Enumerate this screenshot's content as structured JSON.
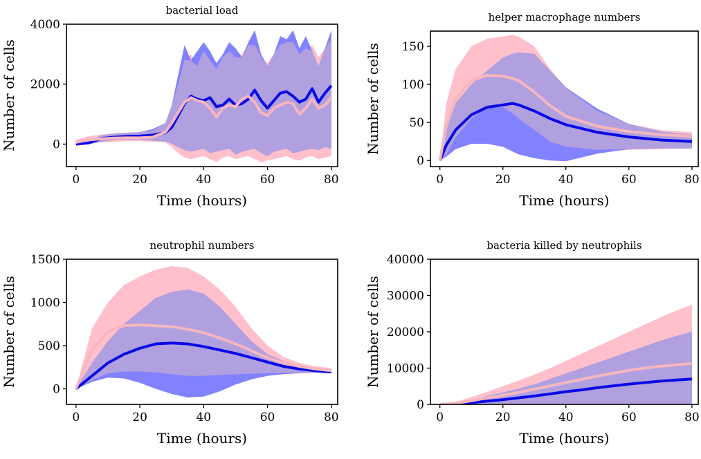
{
  "figure": {
    "background": "#ffffff"
  },
  "colors": {
    "blue_line": "#0a0ae6",
    "blue_band": "#6666ff",
    "pink_line": "#f5b6bf",
    "pink_band": "#ffc0cb",
    "overlap": "#b0a0df"
  },
  "chart_data": [
    {
      "type": "line",
      "title": "bacterial load",
      "xlabel": "Time (hours)",
      "ylabel": "Number of cells",
      "xlim": [
        -3,
        82
      ],
      "ylim": [
        -750,
        4000
      ],
      "xticks": [
        0,
        20,
        40,
        60,
        80
      ],
      "yticks": [
        0,
        2000,
        4000
      ],
      "x": [
        0,
        4,
        8,
        12,
        16,
        20,
        24,
        28,
        30,
        32,
        34,
        36,
        38,
        40,
        42,
        44,
        46,
        48,
        50,
        52,
        54,
        56,
        58,
        60,
        62,
        64,
        66,
        68,
        70,
        72,
        74,
        76,
        78,
        80
      ],
      "series": [
        {
          "name": "blue",
          "mean": [
            0,
            40,
            190,
            230,
            260,
            270,
            300,
            380,
            560,
            950,
            1350,
            1600,
            1500,
            1450,
            1550,
            1250,
            1300,
            1500,
            1300,
            1350,
            1500,
            1800,
            1450,
            1200,
            1450,
            1700,
            1750,
            1600,
            1400,
            1500,
            1850,
            1400,
            1700,
            1950
          ],
          "upper": [
            0,
            80,
            300,
            350,
            380,
            400,
            500,
            700,
            1300,
            2300,
            3300,
            2800,
            3100,
            3400,
            3100,
            2700,
            3000,
            3400,
            3200,
            2900,
            3400,
            3800,
            3000,
            2600,
            3000,
            3600,
            3500,
            3800,
            3200,
            3600,
            3100,
            2600,
            3200,
            3800
          ],
          "lower": [
            0,
            0,
            80,
            130,
            150,
            150,
            120,
            80,
            20,
            -100,
            -200,
            -250,
            -200,
            -150,
            -300,
            -250,
            -200,
            -150,
            -350,
            -250,
            -200,
            -150,
            -300,
            -400,
            -250,
            -200,
            -150,
            -300,
            -250,
            -200,
            -150,
            -200,
            -100,
            -150
          ]
        },
        {
          "name": "pink",
          "mean": [
            60,
            140,
            180,
            200,
            210,
            210,
            230,
            400,
            700,
            1050,
            1400,
            1550,
            1450,
            1400,
            1200,
            900,
            1200,
            1300,
            1250,
            1500,
            1600,
            1400,
            1050,
            950,
            1200,
            1300,
            1400,
            1350,
            1000,
            1200,
            1500,
            1200,
            1300,
            1550
          ],
          "upper": [
            150,
            260,
            320,
            350,
            370,
            400,
            450,
            700,
            1300,
            2000,
            2800,
            3000,
            2600,
            3100,
            2800,
            2500,
            2900,
            3100,
            2900,
            3000,
            3300,
            3300,
            2900,
            2700,
            3000,
            3300,
            3400,
            3400,
            3000,
            3200,
            3300,
            2900,
            3200,
            3500
          ],
          "lower": [
            -50,
            0,
            60,
            80,
            100,
            100,
            80,
            60,
            -100,
            -300,
            -450,
            -500,
            -450,
            -400,
            -500,
            -600,
            -450,
            -400,
            -500,
            -450,
            -400,
            -500,
            -600,
            -550,
            -500,
            -450,
            -400,
            -500,
            -550,
            -450,
            -400,
            -500,
            -450,
            -400
          ]
        }
      ]
    },
    {
      "type": "line",
      "title": "helper macrophage numbers",
      "xlabel": "Time (hours)",
      "ylabel": "Number of cells",
      "xlim": [
        -3,
        82
      ],
      "ylim": [
        -8,
        170
      ],
      "xticks": [
        0,
        20,
        40,
        60,
        80
      ],
      "yticks": [
        0,
        50,
        100,
        150
      ],
      "x": [
        0,
        2,
        5,
        10,
        15,
        20,
        23,
        25,
        30,
        35,
        40,
        50,
        60,
        70,
        80
      ],
      "series": [
        {
          "name": "blue",
          "mean": [
            0,
            20,
            40,
            60,
            70,
            73,
            75,
            73,
            65,
            55,
            47,
            37,
            31,
            27,
            25
          ],
          "upper": [
            0,
            40,
            75,
            100,
            118,
            135,
            140,
            142,
            140,
            118,
            96,
            68,
            48,
            38,
            34
          ],
          "lower": [
            0,
            5,
            15,
            22,
            22,
            18,
            12,
            8,
            3,
            0,
            -1,
            9,
            15,
            16,
            16
          ]
        },
        {
          "name": "pink",
          "mean": [
            0,
            45,
            80,
            105,
            112,
            111,
            108,
            105,
            90,
            72,
            58,
            45,
            38,
            34,
            32
          ],
          "upper": [
            0,
            75,
            120,
            150,
            160,
            163,
            165,
            163,
            150,
            120,
            95,
            65,
            48,
            40,
            37
          ],
          "lower": [
            0,
            8,
            30,
            55,
            70,
            70,
            62,
            55,
            40,
            25,
            18,
            14,
            14,
            15,
            16
          ]
        }
      ]
    },
    {
      "type": "line",
      "title": "neutrophil numbers",
      "xlabel": "Time (hours)",
      "ylabel": "Number of cells",
      "xlim": [
        -3,
        82
      ],
      "ylim": [
        -180,
        1500
      ],
      "xticks": [
        0,
        20,
        40,
        60,
        80
      ],
      "yticks": [
        0,
        500,
        1000,
        1500
      ],
      "x": [
        0,
        5,
        10,
        15,
        20,
        25,
        30,
        35,
        40,
        45,
        50,
        55,
        60,
        65,
        70,
        75,
        80
      ],
      "series": [
        {
          "name": "blue",
          "mean": [
            0,
            150,
            300,
            400,
            470,
            520,
            530,
            520,
            490,
            450,
            410,
            360,
            310,
            260,
            230,
            210,
            195
          ],
          "upper": [
            0,
            300,
            550,
            750,
            900,
            1050,
            1120,
            1150,
            1100,
            950,
            750,
            550,
            400,
            320,
            270,
            240,
            220
          ],
          "lower": [
            0,
            80,
            130,
            120,
            70,
            0,
            -60,
            -100,
            -90,
            -30,
            50,
            110,
            150,
            170,
            180,
            185,
            180
          ]
        },
        {
          "name": "pink",
          "mean": [
            0,
            450,
            660,
            730,
            740,
            730,
            720,
            690,
            650,
            590,
            520,
            440,
            360,
            300,
            260,
            230,
            210
          ],
          "upper": [
            0,
            700,
            1000,
            1200,
            1300,
            1380,
            1420,
            1400,
            1300,
            1150,
            950,
            700,
            500,
            370,
            300,
            260,
            240
          ],
          "lower": [
            0,
            100,
            180,
            200,
            200,
            190,
            170,
            150,
            150,
            160,
            170,
            175,
            180,
            185,
            185,
            185,
            185
          ]
        }
      ]
    },
    {
      "type": "line",
      "title": "bacteria killed by neutrophils",
      "xlabel": "Time (hours)",
      "ylabel": "Number of cells",
      "xlim": [
        -3,
        82
      ],
      "ylim": [
        0,
        40000
      ],
      "xticks": [
        0,
        20,
        40,
        60,
        80
      ],
      "yticks": [
        0,
        10000,
        20000,
        30000,
        40000
      ],
      "x": [
        0,
        5,
        10,
        15,
        20,
        25,
        30,
        35,
        40,
        45,
        50,
        55,
        60,
        65,
        70,
        75,
        80
      ],
      "series": [
        {
          "name": "blue",
          "mean": [
            0,
            150,
            500,
            900,
            1300,
            1800,
            2300,
            2900,
            3500,
            4000,
            4600,
            5100,
            5600,
            6000,
            6400,
            6700,
            7000
          ],
          "upper": [
            0,
            400,
            1300,
            2300,
            3300,
            4300,
            5500,
            7000,
            8500,
            10000,
            11500,
            13000,
            14500,
            16000,
            17500,
            18800,
            20000
          ],
          "lower": [
            0,
            0,
            0,
            0,
            0,
            0,
            0,
            0,
            0,
            0,
            0,
            0,
            0,
            0,
            0,
            0,
            0
          ]
        },
        {
          "name": "pink",
          "mean": [
            0,
            300,
            1000,
            1800,
            2500,
            3300,
            4200,
            5100,
            6000,
            6900,
            7800,
            8600,
            9400,
            10000,
            10500,
            10900,
            11300
          ],
          "upper": [
            0,
            700,
            2000,
            3500,
            5000,
            6600,
            8200,
            10000,
            12000,
            14000,
            16000,
            18000,
            20000,
            22000,
            24000,
            25800,
            27500
          ],
          "lower": [
            0,
            0,
            0,
            0,
            0,
            0,
            0,
            0,
            0,
            0,
            0,
            0,
            0,
            0,
            0,
            0,
            0
          ]
        }
      ]
    }
  ]
}
